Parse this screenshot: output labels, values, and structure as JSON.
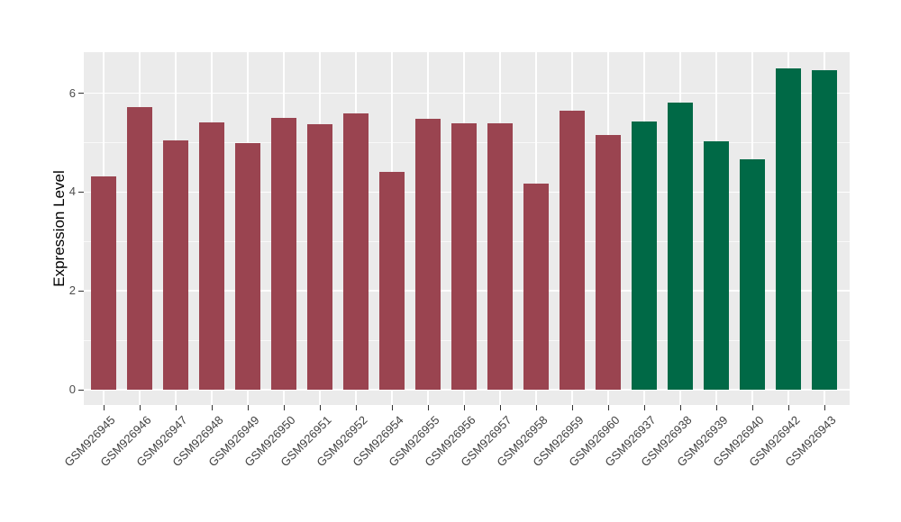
{
  "chart_data": {
    "type": "bar",
    "ylabel": "Expression Level",
    "categories": [
      "GSM926945",
      "GSM926946",
      "GSM926947",
      "GSM926948",
      "GSM926949",
      "GSM926950",
      "GSM926951",
      "GSM926952",
      "GSM926954",
      "GSM926955",
      "GSM926956",
      "GSM926957",
      "GSM926958",
      "GSM926959",
      "GSM926960",
      "GSM926937",
      "GSM926938",
      "GSM926939",
      "GSM926940",
      "GSM926942",
      "GSM926943"
    ],
    "values": [
      4.31,
      5.72,
      5.05,
      5.41,
      5.0,
      5.5,
      5.38,
      5.59,
      4.41,
      5.48,
      5.39,
      5.39,
      4.18,
      5.64,
      5.15,
      5.43,
      5.81,
      5.02,
      4.67,
      6.51,
      6.47
    ],
    "groups": [
      "group1",
      "group1",
      "group1",
      "group1",
      "group1",
      "group1",
      "group1",
      "group1",
      "group1",
      "group1",
      "group1",
      "group1",
      "group1",
      "group1",
      "group1",
      "group2",
      "group2",
      "group2",
      "group2",
      "group2",
      "group2"
    ],
    "group_colors": {
      "group1": "#9A4450",
      "group2": "#006946"
    },
    "yticks": [
      0,
      2,
      4,
      6
    ],
    "yticks_minor": [
      1,
      3,
      5
    ],
    "ylim": [
      -0.33,
      6.84
    ],
    "grid": "major and minor white gridlines on gray panel",
    "legend_position": "none",
    "panel_background": "#EBEBEB",
    "gridline_color": "#FFFFFF",
    "axis_text_color": "#4D4D4D",
    "axis_title_color": "#000000"
  }
}
